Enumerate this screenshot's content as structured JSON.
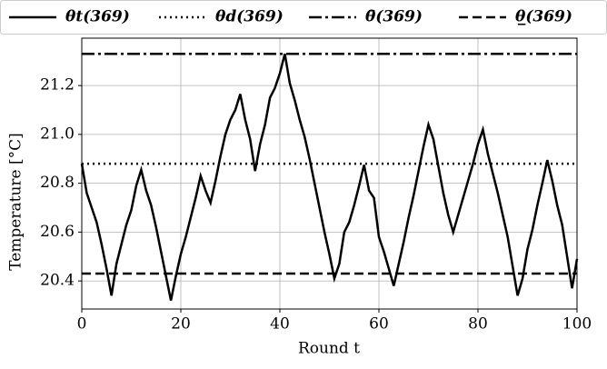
{
  "chart_data": {
    "type": "line",
    "xlabel": "Round t",
    "ylabel": "Temperature [°C]",
    "xlim": [
      0,
      100
    ],
    "ylim": [
      20.285,
      21.394
    ],
    "xticks": [
      0,
      20,
      40,
      60,
      80,
      100
    ],
    "yticks": [
      20.4,
      20.6,
      20.8,
      {
        "value": 21,
        "label": "21.0"
      },
      21.2
    ],
    "grid": true,
    "legend": "top",
    "x": [
      0,
      1,
      2,
      3,
      4,
      5,
      6,
      7,
      8,
      9,
      10,
      11,
      12,
      13,
      14,
      15,
      16,
      17,
      18,
      19,
      20,
      21,
      22,
      23,
      24,
      25,
      26,
      27,
      28,
      29,
      30,
      31,
      32,
      33,
      34,
      35,
      36,
      37,
      38,
      39,
      40,
      41,
      42,
      43,
      44,
      45,
      46,
      47,
      48,
      49,
      50,
      51,
      52,
      53,
      54,
      55,
      56,
      57,
      58,
      59,
      60,
      61,
      62,
      63,
      64,
      65,
      66,
      67,
      68,
      69,
      70,
      71,
      72,
      73,
      74,
      75,
      76,
      77,
      78,
      79,
      80,
      81,
      82,
      83,
      84,
      85,
      86,
      87,
      88,
      89,
      90,
      91,
      92,
      93,
      94,
      95,
      96,
      97,
      98,
      99,
      100
    ],
    "series": [
      {
        "name": "θt(369)",
        "color": "#000000",
        "style": "solid",
        "values": [
          20.88,
          20.76,
          20.7,
          20.64,
          20.55,
          20.45,
          20.34,
          20.47,
          20.55,
          20.63,
          20.69,
          20.79,
          20.855,
          20.77,
          20.71,
          20.62,
          20.52,
          20.42,
          20.32,
          20.42,
          20.51,
          20.58,
          20.66,
          20.74,
          20.83,
          20.77,
          20.72,
          20.81,
          20.91,
          21.0,
          21.06,
          21.1,
          21.165,
          21.06,
          20.98,
          20.85,
          20.96,
          21.04,
          21.15,
          21.19,
          21.25,
          21.33,
          21.21,
          21.14,
          21.06,
          20.99,
          20.9,
          20.8,
          20.7,
          20.6,
          20.51,
          20.41,
          20.47,
          20.6,
          20.64,
          20.71,
          20.79,
          20.875,
          20.77,
          20.74,
          20.58,
          20.52,
          20.45,
          20.38,
          20.47,
          20.56,
          20.66,
          20.75,
          20.85,
          20.95,
          21.04,
          20.98,
          20.87,
          20.76,
          20.67,
          20.6,
          20.67,
          20.74,
          20.81,
          20.88,
          20.96,
          21.02,
          20.92,
          20.84,
          20.76,
          20.67,
          20.58,
          20.46,
          20.34,
          20.41,
          20.53,
          20.61,
          20.71,
          20.8,
          20.895,
          20.81,
          20.71,
          20.63,
          20.5,
          20.37,
          20.49
        ]
      },
      {
        "name": "θd(369)",
        "color": "#000000",
        "style": "dotted",
        "value": 20.88
      },
      {
        "name": "θ̄(369)",
        "color": "#000000",
        "style": "dashdot",
        "value": 21.33
      },
      {
        "name": "θ̲(369)",
        "color": "#000000",
        "style": "dashed",
        "value": 20.43
      }
    ]
  }
}
